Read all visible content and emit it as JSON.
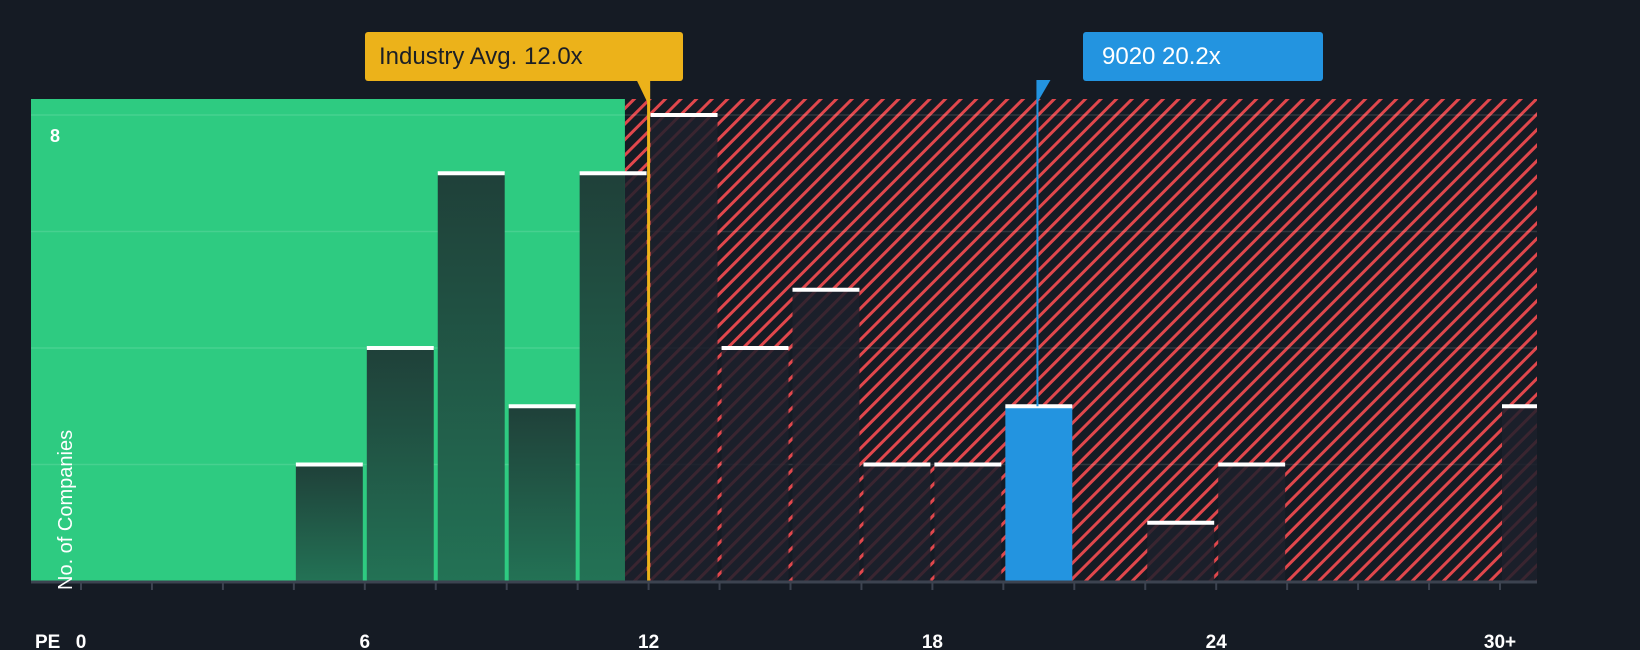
{
  "chart_data": {
    "type": "bar",
    "title": "",
    "xlabel": "PE",
    "ylabel": "No. of Companies",
    "x_tick_labels": [
      "0",
      "6",
      "12",
      "18",
      "24",
      "30+"
    ],
    "x_tick_values": [
      0,
      6,
      12,
      18,
      24,
      30
    ],
    "y_tick_labels": [
      "8"
    ],
    "ylim": [
      0,
      8.3
    ],
    "xlim": [
      -1.06,
      30.8
    ],
    "bin_width": 1.5,
    "grid": true,
    "categories": [
      "4.5-6.0",
      "6.0-7.5",
      "7.5-9.0",
      "9.0-10.5",
      "10.5-12.0",
      "12.0-13.5",
      "13.5-15.0",
      "15.0-16.5",
      "16.5-18.0",
      "18.0-19.5",
      "19.5-21.0",
      "22.5-24.0",
      "24.0-25.5",
      "30+"
    ],
    "bin_starts": [
      4.5,
      6.0,
      7.5,
      9.0,
      10.5,
      12.0,
      13.5,
      15.0,
      16.5,
      18.0,
      19.5,
      22.5,
      24.0,
      30.0
    ],
    "values": [
      2,
      4,
      7,
      3,
      7,
      8,
      4,
      5,
      2,
      2,
      3,
      1,
      2,
      3
    ],
    "highlight_index": 10,
    "fair_zone_end": 11.5,
    "annotations": [
      {
        "label": "Industry Avg. 12.0x",
        "value": 12.0,
        "color": "#ecb21a"
      },
      {
        "label": "9020 20.2x",
        "value": 20.2,
        "color": "#2394e0"
      }
    ]
  },
  "callouts": {
    "industry": "Industry Avg. 12.0x",
    "company": "9020 20.2x"
  },
  "axis": {
    "x_title": "PE",
    "y_title": "No. of Companies",
    "y_max_label": "8"
  },
  "colors": {
    "background": "#151b24",
    "fair_zone": "#2ecb81",
    "overvalued_hatch": "#e0474c",
    "bar_in_green": "#1f4a3f",
    "bar_in_hatch": "#1c202b",
    "highlight_bar": "#2394e0",
    "industry_line": "#ecb21a",
    "bar_cap": "#ffffff"
  }
}
